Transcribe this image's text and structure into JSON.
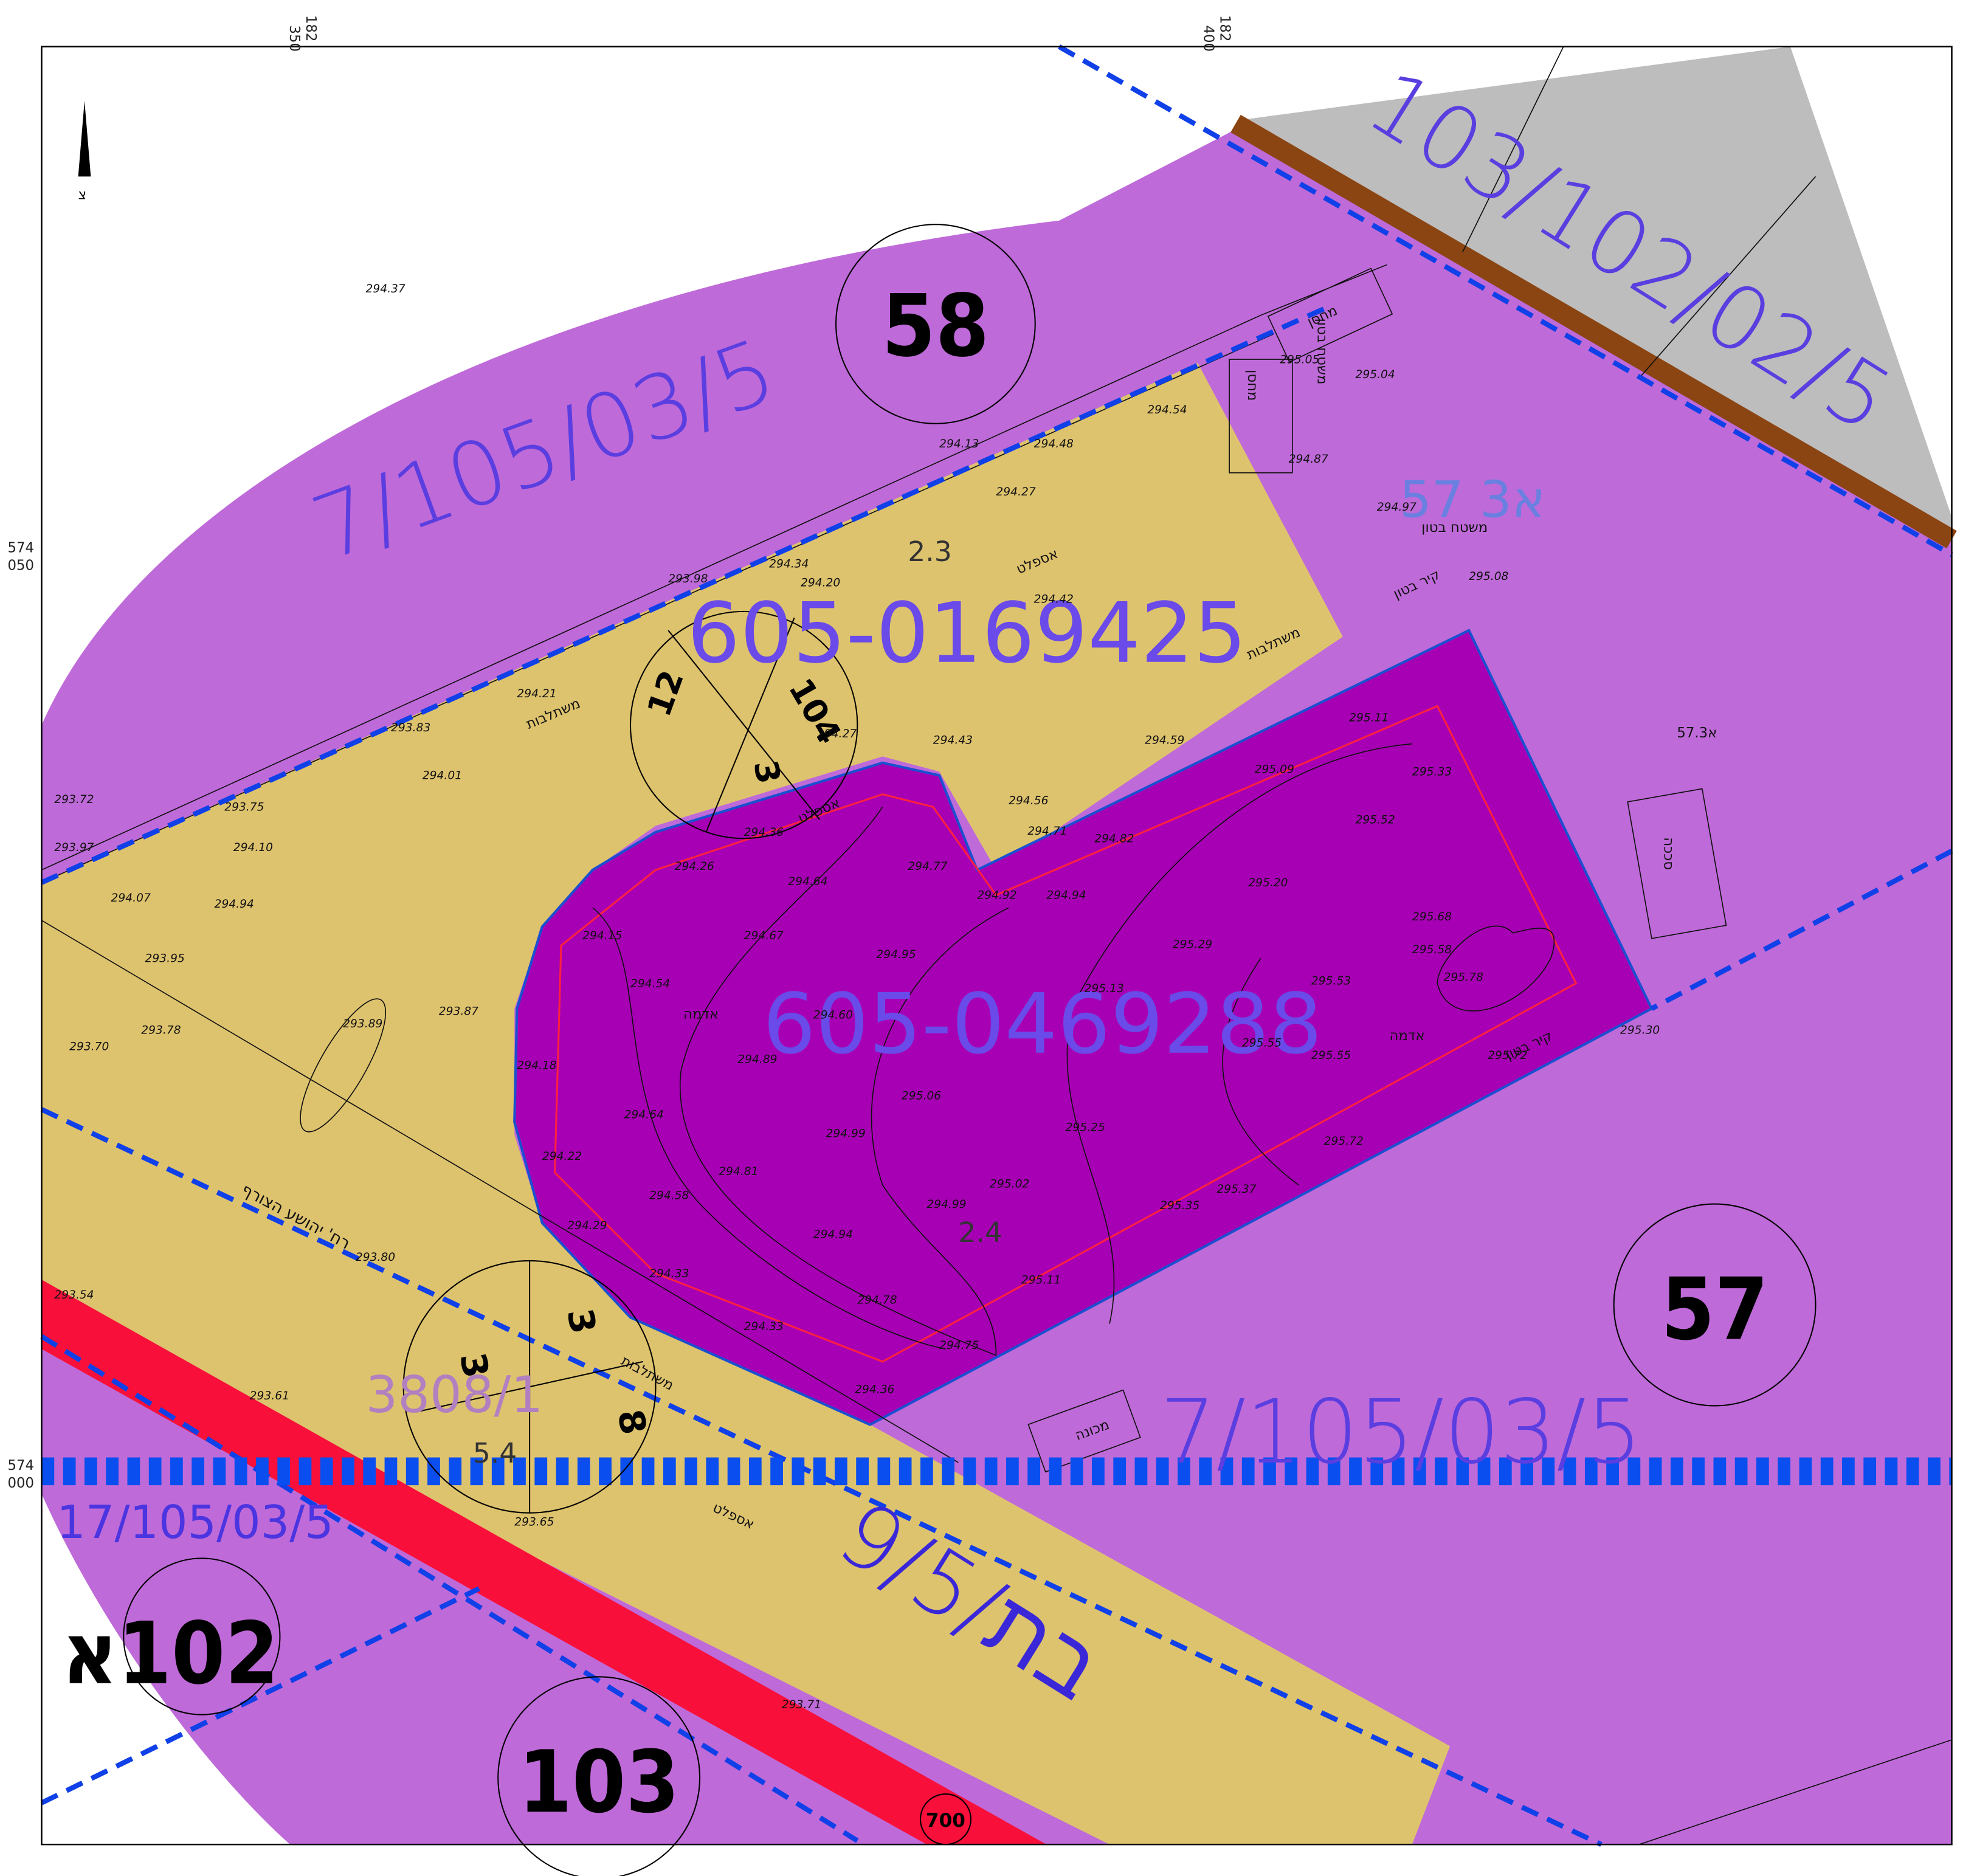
{
  "grid_labels": {
    "x_top_a": "182",
    "x_top_a2": "350",
    "x_top_b": "182",
    "x_top_b2": "400",
    "y_a": "574",
    "y_a2": "050",
    "y_b": "574",
    "y_b2": "000"
  },
  "parcels": {
    "p58": "58",
    "p57": "57",
    "p103": "103",
    "p102": "102א",
    "p104": "104",
    "p12": "12",
    "p3": "3",
    "p8": "8",
    "p3b": "3",
    "p3c": "3",
    "road": "700"
  },
  "plans": {
    "north_west": "7/105/03/5",
    "north_east": "103/102/02/5",
    "south": "7/105/03/5",
    "road": "9/בת/5",
    "south_west": "17/105/03/5",
    "old": "3808/1",
    "sub_57": "57 א3",
    "sub_57b": "57.א3"
  },
  "ids": {
    "upper": "605-0169425",
    "lower": "605-0469288"
  },
  "areas": {
    "a23": "2.3",
    "a24": "2.4",
    "a54": "5.4"
  },
  "notes": {
    "asphalt": "אספלט",
    "asphalt2": "אספלט",
    "asphalt3": "אספלט",
    "soil": "אדמה",
    "soil2": "אדמה",
    "paver": "משתלבות",
    "paver2": "משתלבות",
    "paver3": "משתלבות",
    "shed": "מחסן",
    "shed2": "מחסן",
    "concrete": "משטח בטון",
    "concrete2": "משטח בטון",
    "wall": "קיר בטון",
    "wall2": "קיר בטון",
    "canopy": "סככה",
    "machine": "מכונה",
    "street": "רח' יהושע הצורף",
    "north": "צ"
  },
  "elevations": [
    "294.37",
    "294.13",
    "294.48",
    "294.27",
    "294.54",
    "293.98",
    "294.20",
    "294.42",
    "294.34",
    "293.83",
    "294.21",
    "294.01",
    "294.27",
    "294.43",
    "294.59",
    "294.56",
    "294.71",
    "294.82",
    "294.92",
    "294.94",
    "295.11",
    "295.09",
    "295.33",
    "295.52",
    "295.20",
    "295.29",
    "295.68",
    "295.13",
    "294.95",
    "294.77",
    "294.64",
    "294.67",
    "294.54",
    "294.60",
    "294.89",
    "294.64",
    "294.81",
    "294.99",
    "295.06",
    "295.25",
    "295.53",
    "295.55",
    "295.78",
    "295.72",
    "295.72",
    "295.37",
    "295.35",
    "295.02",
    "294.99",
    "294.94",
    "294.58",
    "294.22",
    "294.29",
    "294.33",
    "294.33",
    "294.78",
    "294.75",
    "295.11",
    "294.36",
    "294.15",
    "294.26",
    "294.36",
    "293.95",
    "293.70",
    "293.78",
    "294.07",
    "294.10",
    "293.75",
    "293.72",
    "293.97",
    "293.61",
    "293.65",
    "293.71",
    "293.54",
    "293.80",
    "293.87",
    "293.89",
    "294.97",
    "294.87",
    "295.08",
    "295.05",
    "295.04",
    "295.55",
    "295.58",
    "294.18",
    "294.94",
    "295.30"
  ]
}
